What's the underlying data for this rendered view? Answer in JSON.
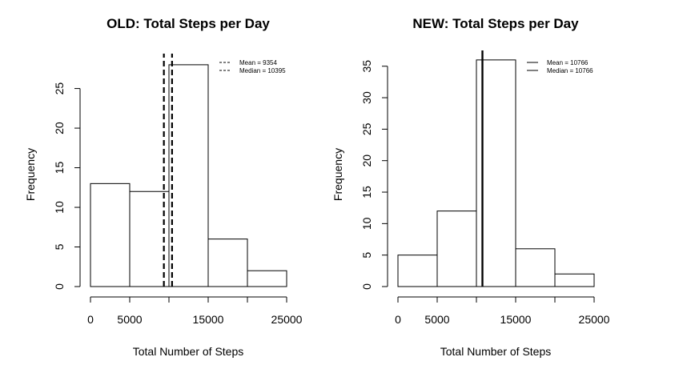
{
  "chart_data": [
    {
      "type": "bar",
      "title": "OLD: Total Steps per Day",
      "xlabel": "Total Number of Steps",
      "ylabel": "Frequency",
      "bin_edges": [
        0,
        5000,
        10000,
        15000,
        20000,
        25000
      ],
      "values": [
        13,
        12,
        28,
        6,
        2
      ],
      "xlim": [
        0,
        25000
      ],
      "ylim": [
        0,
        29
      ],
      "xticks": [
        0,
        5000,
        10000,
        15000,
        20000,
        25000
      ],
      "xtick_labels": [
        "0",
        "5000",
        "",
        "15000",
        "",
        "25000"
      ],
      "yticks": [
        0,
        5,
        10,
        15,
        20,
        25
      ],
      "ytick_labels": [
        "0",
        "5",
        "10",
        "15",
        "20",
        "25"
      ],
      "vlines": [
        {
          "value": 9354,
          "style": "dashed"
        },
        {
          "value": 10395,
          "style": "dashed"
        }
      ],
      "legend": {
        "position": "top-right",
        "entries": [
          {
            "label": "Mean = 9354",
            "style": "dashed"
          },
          {
            "label": "Median = 10395",
            "style": "dashed"
          }
        ]
      },
      "grid": false
    },
    {
      "type": "bar",
      "title": "NEW: Total Steps per Day",
      "xlabel": "Total Number of Steps",
      "ylabel": "Frequency",
      "bin_edges": [
        0,
        5000,
        10000,
        15000,
        20000,
        25000
      ],
      "values": [
        5,
        12,
        36,
        6,
        2
      ],
      "xlim": [
        0,
        25000
      ],
      "ylim": [
        0,
        37
      ],
      "xticks": [
        0,
        5000,
        10000,
        15000,
        20000,
        25000
      ],
      "xtick_labels": [
        "0",
        "5000",
        "",
        "15000",
        "",
        "25000"
      ],
      "yticks": [
        0,
        5,
        10,
        15,
        20,
        25,
        30,
        35
      ],
      "ytick_labels": [
        "0",
        "5",
        "10",
        "15",
        "20",
        "25",
        "30",
        "35"
      ],
      "vlines": [
        {
          "value": 10766,
          "style": "solid"
        },
        {
          "value": 10766,
          "style": "solid"
        }
      ],
      "legend": {
        "position": "top-right",
        "entries": [
          {
            "label": "Mean = 10766",
            "style": "solid"
          },
          {
            "label": "Median = 10766",
            "style": "solid"
          }
        ]
      },
      "grid": false
    }
  ]
}
